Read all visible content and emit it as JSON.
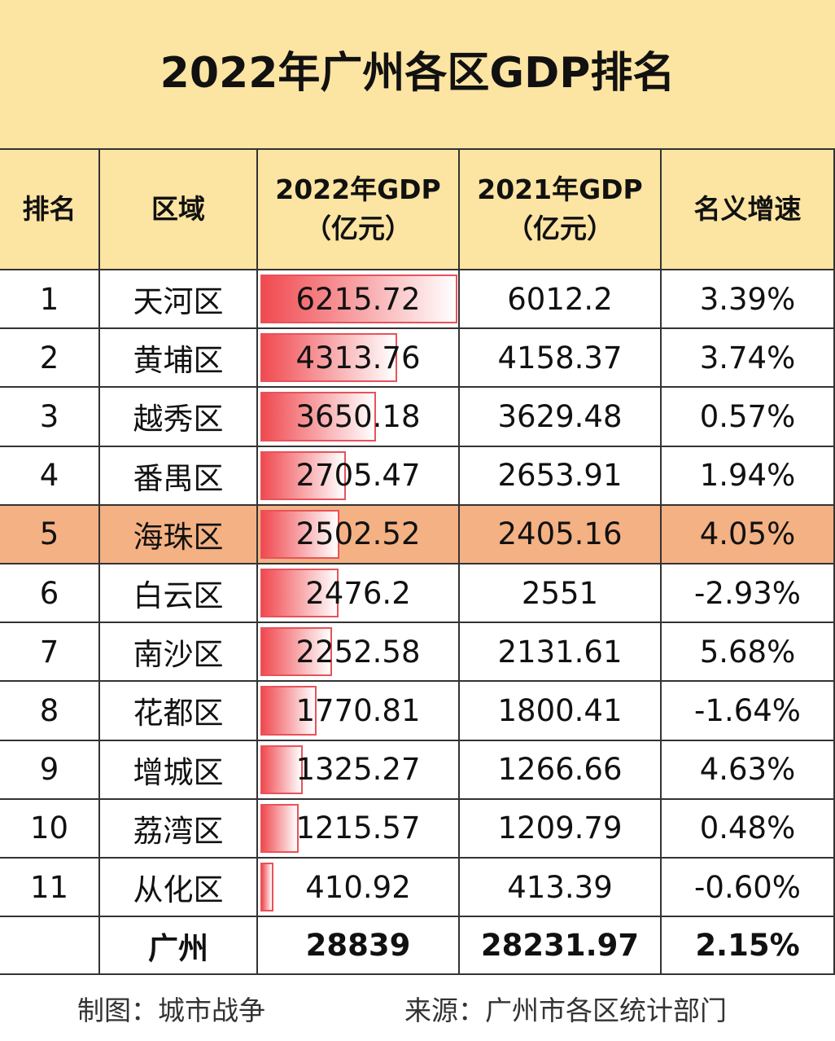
{
  "title": "2022年广州各区GDP排名",
  "header": [
    "排名",
    "区域",
    "2022年GDP\n（亿元）",
    "2021年GDP\n（亿元）",
    "名义增速"
  ],
  "rows": [
    {
      "rank": 1,
      "district": "天河区",
      "gdp2022": 6215.72,
      "gdp2021": 6012.2,
      "growth": "3.39%"
    },
    {
      "rank": 2,
      "district": "黄埔区",
      "gdp2022": 4313.76,
      "gdp2021": 4158.37,
      "growth": "3.74%"
    },
    {
      "rank": 3,
      "district": "越秀区",
      "gdp2022": 3650.18,
      "gdp2021": 3629.48,
      "growth": "0.57%"
    },
    {
      "rank": 4,
      "district": "番禺区",
      "gdp2022": 2705.47,
      "gdp2021": 2653.91,
      "growth": "1.94%"
    },
    {
      "rank": 5,
      "district": "海珠区",
      "gdp2022": 2502.52,
      "gdp2021": 2405.16,
      "growth": "4.05%"
    },
    {
      "rank": 6,
      "district": "白云区",
      "gdp2022": 2476.2,
      "gdp2021": 2551,
      "growth": "-2.93%"
    },
    {
      "rank": 7,
      "district": "南沙区",
      "gdp2022": 2252.58,
      "gdp2021": 2131.61,
      "growth": "5.68%"
    },
    {
      "rank": 8,
      "district": "花都区",
      "gdp2022": 1770.81,
      "gdp2021": 1800.41,
      "growth": "-1.64%"
    },
    {
      "rank": 9,
      "district": "增城区",
      "gdp2022": 1325.27,
      "gdp2021": 1266.66,
      "growth": "4.63%"
    },
    {
      "rank": 10,
      "district": "荔湾区",
      "gdp2022": 1215.57,
      "gdp2021": 1209.79,
      "growth": "0.48%"
    },
    {
      "rank": 11,
      "district": "从化区",
      "gdp2022": 410.92,
      "gdp2021": 413.39,
      "growth": "-0.60%"
    }
  ],
  "total": {
    "district": "广州",
    "gdp2022": 28839,
    "gdp2021": 28231.97,
    "growth": "2.15%"
  },
  "footer": {
    "author": "制图：城市战争",
    "source": "来源：广州市各区统计部门"
  }
}
